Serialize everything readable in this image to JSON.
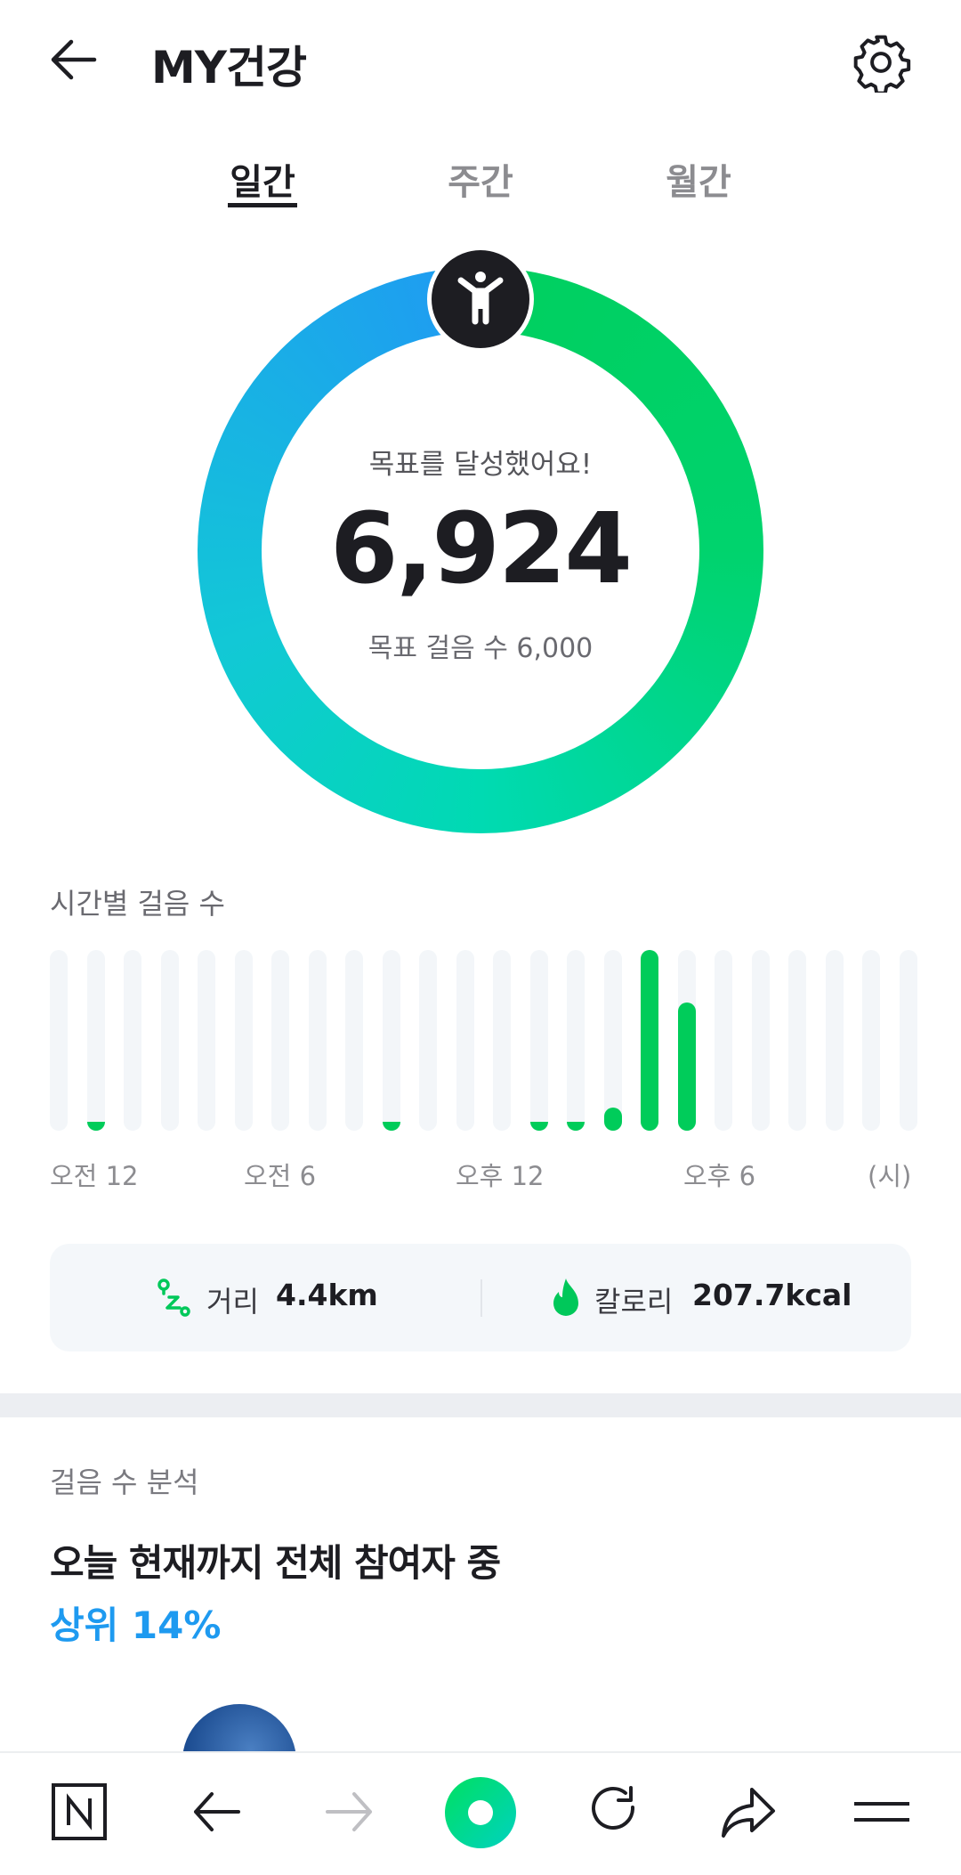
{
  "header": {
    "title": "MY건강",
    "back_icon": "arrow-left-icon",
    "settings_icon": "gear-icon"
  },
  "tabs": [
    {
      "label": "일간",
      "active": true
    },
    {
      "label": "주간",
      "active": false
    },
    {
      "label": "월간",
      "active": false
    }
  ],
  "ring": {
    "status": "목표를 달성했어요!",
    "steps": "6,924",
    "goal_label": "목표 걸음 수 6,000",
    "progress_percent": 100,
    "colors": {
      "green": "#00cf5f",
      "teal": "#00dab2",
      "blue": "#1e9ef0"
    }
  },
  "hourly": {
    "title": "시간별 걸음 수",
    "axis_labels": [
      "오전 12",
      "오전 6",
      "오후 12",
      "오후 6",
      "(시)"
    ],
    "chart_data": {
      "type": "bar",
      "categories": [
        "0",
        "1",
        "2",
        "3",
        "4",
        "5",
        "6",
        "7",
        "8",
        "9",
        "10",
        "11",
        "12",
        "13",
        "14",
        "15",
        "16",
        "17",
        "18",
        "19",
        "20",
        "21",
        "22",
        "23"
      ],
      "values": [
        0,
        2,
        0,
        0,
        0,
        0,
        0,
        0,
        0,
        1,
        0,
        0,
        0,
        2,
        2,
        13,
        100,
        71,
        0,
        0,
        0,
        0,
        0,
        0
      ],
      "ylim": [
        0,
        100
      ],
      "color": "#00cc5a",
      "track_color": "#f3f6f9"
    }
  },
  "summary": {
    "distance_label": "거리",
    "distance_value": "4.4km",
    "calorie_label": "칼로리",
    "calorie_value": "207.7kcal"
  },
  "analysis": {
    "section": "걸음 수 분석",
    "headline": "오늘 현재까지 전체 참여자 중",
    "rank": "상위 14%",
    "accent": "#1e9af0"
  },
  "bottom_nav": [
    "naver-n-icon",
    "back-arrow-icon",
    "forward-arrow-icon",
    "green-dot-icon",
    "refresh-icon",
    "share-icon",
    "menu-icon"
  ]
}
